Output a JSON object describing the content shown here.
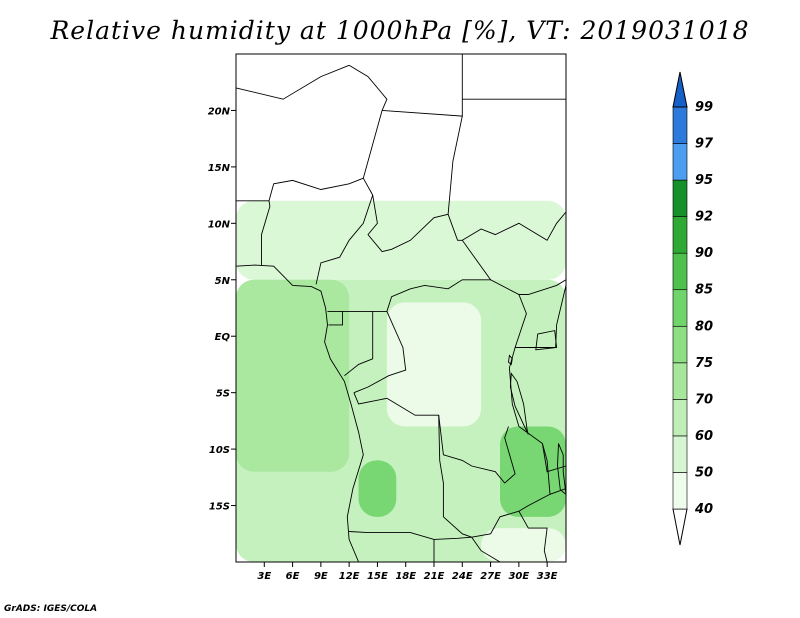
{
  "title": "Relative humidity at 1000hPa [%], VT: 2019031018",
  "credit": "GrADS: IGES/COLA",
  "chart_data": {
    "type": "heatmap",
    "title": "Relative humidity at 1000hPa [%], VT: 2019031018",
    "lon_range": [
      0,
      35
    ],
    "lat_range": [
      -20,
      25
    ],
    "lon_ticks": [
      {
        "v": 3,
        "label": "3E"
      },
      {
        "v": 6,
        "label": "6E"
      },
      {
        "v": 9,
        "label": "9E"
      },
      {
        "v": 12,
        "label": "12E"
      },
      {
        "v": 15,
        "label": "15E"
      },
      {
        "v": 18,
        "label": "18E"
      },
      {
        "v": 21,
        "label": "21E"
      },
      {
        "v": 24,
        "label": "24E"
      },
      {
        "v": 27,
        "label": "27E"
      },
      {
        "v": 30,
        "label": "30E"
      },
      {
        "v": 33,
        "label": "33E"
      }
    ],
    "lat_ticks": [
      {
        "v": 20,
        "label": "20N"
      },
      {
        "v": 15,
        "label": "15N"
      },
      {
        "v": 10,
        "label": "10N"
      },
      {
        "v": 5,
        "label": "5N"
      },
      {
        "v": 0,
        "label": "EQ"
      },
      {
        "v": -5,
        "label": "5S"
      },
      {
        "v": -10,
        "label": "10S"
      },
      {
        "v": -15,
        "label": "15S"
      }
    ],
    "colorbar": {
      "levels": [
        "40",
        "50",
        "60",
        "70",
        "75",
        "80",
        "85",
        "90",
        "92",
        "95",
        "97",
        "99"
      ],
      "colors": [
        "#ffffff",
        "#eefcec",
        "#d6f6d1",
        "#bfefb7",
        "#a6e79c",
        "#8ede83",
        "#6fd46a",
        "#4ec14c",
        "#2eaa34",
        "#16902a",
        "#4c9ef0",
        "#2c7adc",
        "#1560c8"
      ]
    },
    "field_regions": [
      {
        "lon0": 0,
        "lon1": 35,
        "lat0": 5,
        "lat1": 12,
        "class": 2
      },
      {
        "lon0": 0,
        "lon1": 35,
        "lat0": -20,
        "lat1": 5,
        "class": 3
      },
      {
        "lon0": 0,
        "lon1": 12,
        "lat0": -12,
        "lat1": 5,
        "class": 4
      },
      {
        "lon0": 16,
        "lon1": 26,
        "lat0": -8,
        "lat1": 3,
        "class": 1
      },
      {
        "lon0": 28,
        "lon1": 35,
        "lat0": -16,
        "lat1": -8,
        "class": 6
      },
      {
        "lon0": 13,
        "lon1": 17,
        "lat0": -16,
        "lat1": -11,
        "class": 6
      },
      {
        "lon0": 26,
        "lon1": 35,
        "lat0": -20,
        "lat1": -17,
        "class": 1
      }
    ]
  }
}
